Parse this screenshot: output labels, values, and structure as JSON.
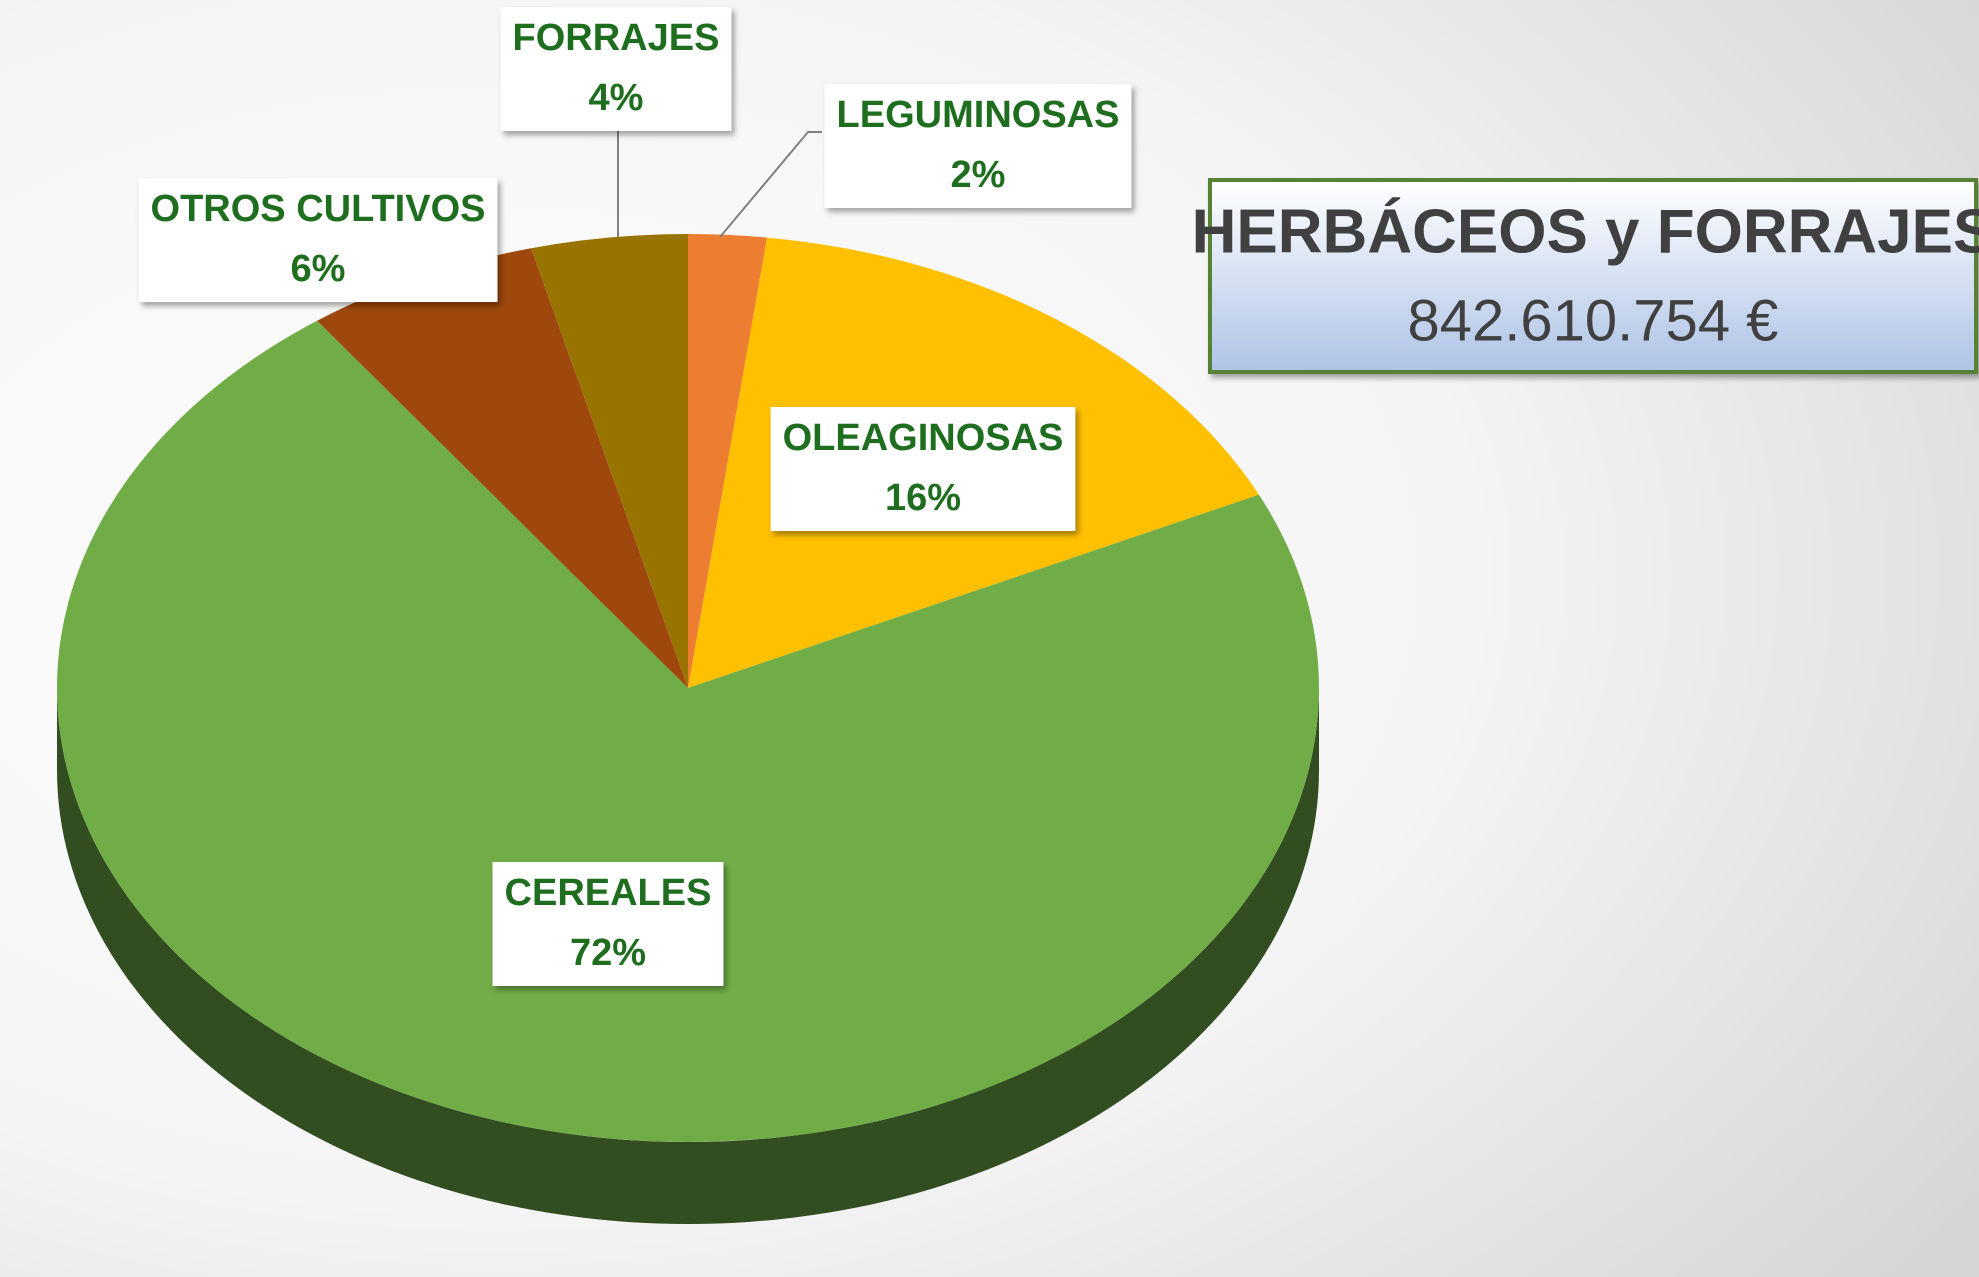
{
  "chart_data": {
    "type": "pie3d",
    "title": "HERBÁCEOS y FORRAJES",
    "subtitle": "842.610.754 €",
    "categories": [
      "LEGUMINOSAS",
      "OLEAGINOSAS",
      "CEREALES",
      "OTROS CULTIVOS",
      "FORRAJES"
    ],
    "values": [
      2,
      16,
      72,
      6,
      4
    ],
    "value_labels": [
      "2%",
      "16%",
      "72%",
      "6%",
      "4%"
    ],
    "colors": [
      "#ed7d31",
      "#ffc000",
      "#70ad47",
      "#9e480e",
      "#997300"
    ]
  }
}
